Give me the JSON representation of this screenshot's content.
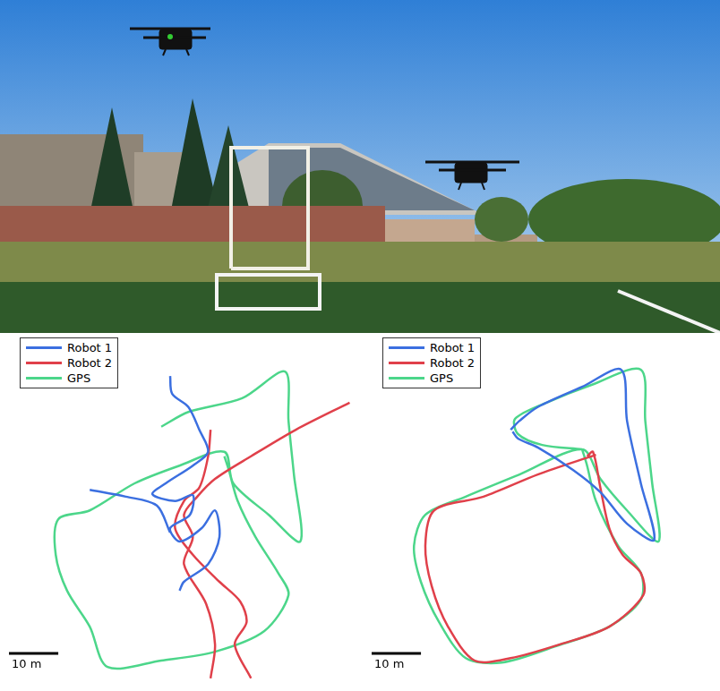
{
  "chart_data": [
    {
      "type": "line",
      "tick_labels": false,
      "legend": "top-left",
      "xlim": [
        0,
        71
      ],
      "ylim": [
        0,
        70
      ],
      "scale_bar": {
        "length": 10,
        "label": "10 m"
      },
      "series": [
        {
          "name": "Robot 1",
          "color": "#3b6fe0",
          "x": [
            34.5,
            34.9,
            38.2,
            40.4,
            42.2,
            39.1,
            33.6,
            30.9,
            35.5,
            39.1,
            38.5,
            34.5,
            36.4,
            40.9,
            43.6,
            44.5,
            42.2,
            37.3,
            36.4,
            null,
            18.2,
            25.5,
            31.8,
            34.5
          ],
          "values": [
            61.8,
            58.2,
            55.5,
            50.9,
            46.4,
            43.6,
            40.0,
            37.8,
            36.4,
            37.6,
            33.6,
            30.9,
            28.2,
            30.9,
            34.5,
            29.1,
            23.6,
            20.0,
            18.2,
            null,
            38.7,
            37.3,
            35.5,
            30.0
          ]
        },
        {
          "name": "Robot 2",
          "color": "#e0404a",
          "x": [
            70.9,
            60.0,
            50.9,
            43.6,
            40.0,
            37.3,
            39.1,
            37.3,
            41.8,
            43.6,
            42.7,
            null,
            42.7,
            42.2,
            40.4,
            37.3,
            35.5,
            39.1,
            44.5,
            48.7,
            50.0,
            47.6,
            50.9
          ],
          "values": [
            56.4,
            50.9,
            45.5,
            40.9,
            37.3,
            33.6,
            29.1,
            23.6,
            15.5,
            7.3,
            0.4,
            null,
            50.9,
            45.5,
            39.1,
            36.4,
            30.9,
            25.5,
            20.0,
            16.0,
            11.8,
            7.3,
            0.4
          ]
        },
        {
          "name": "GPS",
          "color": "#4cd68a",
          "x": [
            32.7,
            38.2,
            49.1,
            57.8,
            58.5,
            59.6,
            60.9,
            54.5,
            47.3,
            45.5,
            36.4,
            27.3,
            18.2,
            11.8,
            11.3,
            13.6,
            18.2,
            21.8,
            32.7,
            43.6,
            53.6,
            58.5,
            56.4,
            51.8,
            48.2,
            46.4,
            45.5
          ],
          "values": [
            51.5,
            54.5,
            57.3,
            62.7,
            52.7,
            41.8,
            28.2,
            33.6,
            40.0,
            46.4,
            43.6,
            40.0,
            34.5,
            32.7,
            25.5,
            18.2,
            10.9,
            2.7,
            4.0,
            5.8,
            10.0,
            17.3,
            21.8,
            29.1,
            36.4,
            42.7,
            45.5
          ]
        }
      ]
    },
    {
      "type": "line",
      "tick_labels": false,
      "legend": "top-left",
      "xlim": [
        0,
        71
      ],
      "ylim": [
        0,
        70
      ],
      "scale_bar": {
        "length": 10,
        "label": "10 m"
      },
      "series": [
        {
          "name": "Robot 1",
          "color": "#3b6fe0",
          "x": [
            30.0,
            31.8,
            35.5,
            44.5,
            52.4,
            53.6,
            56.4,
            59.1,
            53.6,
            48.2,
            42.7,
            35.5,
            31.5,
            30.4
          ],
          "values": [
            50.9,
            52.7,
            55.5,
            59.6,
            63.1,
            52.7,
            40.0,
            28.5,
            31.8,
            38.2,
            42.7,
            47.3,
            49.1,
            50.5
          ]
        },
        {
          "name": "Robot 2",
          "color": "#e0404a",
          "x": [
            47.3,
            35.5,
            24.5,
            14.5,
            12.7,
            14.0,
            17.3,
            22.7,
            30.0,
            40.0,
            50.0,
            56.9,
            56.4,
            52.7,
            50.0,
            48.2,
            46.7,
            45.5
          ],
          "values": [
            45.8,
            41.8,
            37.3,
            34.5,
            27.3,
            19.1,
            10.9,
            4.0,
            4.5,
            7.3,
            10.9,
            17.3,
            21.8,
            25.5,
            30.9,
            39.1,
            46.4,
            45.5
          ]
        },
        {
          "name": "GPS",
          "color": "#4cd68a",
          "x": [
            44.5,
            36.4,
            31.5,
            30.9,
            37.3,
            46.4,
            56.4,
            57.3,
            58.7,
            60.0,
            53.6,
            48.2,
            44.5,
            31.8,
            20.9,
            12.7,
            10.4,
            11.8,
            15.5,
            20.9,
            28.2,
            39.1,
            50.0,
            56.4,
            56.4,
            51.8,
            47.3,
            45.5,
            44.5
          ],
          "values": [
            46.9,
            47.8,
            50.0,
            53.1,
            56.4,
            60.0,
            63.1,
            52.7,
            40.0,
            28.2,
            34.5,
            40.9,
            46.9,
            41.8,
            37.3,
            33.6,
            27.3,
            20.0,
            11.8,
            4.5,
            3.6,
            6.9,
            10.9,
            16.4,
            21.8,
            27.3,
            36.4,
            43.6,
            46.9
          ]
        }
      ]
    }
  ]
}
